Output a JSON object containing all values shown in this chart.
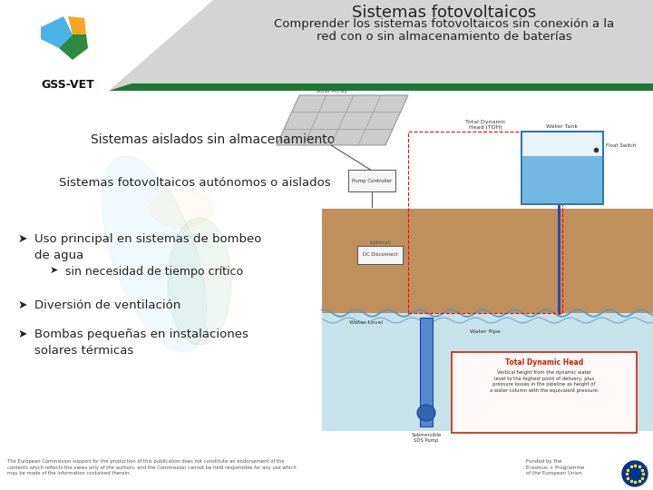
{
  "bg_color": "#f0f0f0",
  "header_bg": "#d4d4d4",
  "title_line1": "Sistemas fotovoltaicos",
  "title_line2": "Comprender los sistemas fotovoltaicos sin conexión a la",
  "title_line3": "red con o sin almacenamiento de baterías",
  "title_color": "#222222",
  "section1": "Sistemas aislados sin almacenamiento",
  "section2": "Sistemas fotovoltaicos autónomos o aislados",
  "bullet1": "Uso principal en sistemas de bombeo",
  "bullet1b": "de agua",
  "bullet1c": "sin necesidad de tiempo crítico",
  "bullet2": "Diversión de ventilación",
  "bullet3": "Bombas pequeñas en instalaciones",
  "bullet3b": "solares térmicas",
  "bullet_color": "#222222",
  "section_color": "#222222",
  "green_stripe": "#1a7a34",
  "footer_text": "The European Commission support for the production of this publication does not constitute an endorsement of the\ncontents which reflects the views only of the authors, and the Commission cannot be held responsible for any use which\nmay be made of the information contained therein.",
  "footer_right": "Funded by the\nErasmus + Programme\nof the European Union",
  "logo_color_green": "#2d8a3e",
  "logo_color_yellow": "#f5a623",
  "logo_color_blue": "#4ab3e8",
  "gssvet_text": "GSS-VET",
  "watermark_alpha": 0.1
}
